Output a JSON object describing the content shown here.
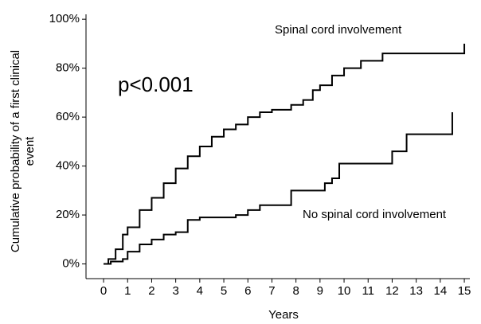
{
  "chart_data": {
    "type": "step",
    "y_label": [
      "Cumulative probability of a first clinical",
      "event"
    ],
    "x_label": "Years",
    "annotations": [
      "p<0.001"
    ],
    "xlim": [
      -0.73,
      15.23
    ],
    "xticks": [
      0,
      1,
      2,
      3,
      4,
      5,
      6,
      7,
      8,
      9,
      10,
      11,
      12,
      13,
      14,
      15
    ],
    "ylim": [
      -6,
      102
    ],
    "yticks": [
      {
        "value": 0,
        "label": "0%"
      },
      {
        "value": 20,
        "label": "20%"
      },
      {
        "value": 40,
        "label": "40%"
      },
      {
        "value": 60,
        "label": "60%"
      },
      {
        "value": 80,
        "label": "80%"
      },
      {
        "value": 100,
        "label": "100%"
      }
    ],
    "series": [
      {
        "name": "Spinal cord involvement",
        "color": "#000000",
        "x": [
          0,
          0.2,
          0.5,
          0.8,
          1,
          1.5,
          2,
          2.5,
          3,
          3.5,
          4,
          4.5,
          5,
          5.5,
          6,
          6.5,
          7,
          7.8,
          8.3,
          8.7,
          9,
          9.5,
          10,
          10.7,
          11.6,
          15
        ],
        "values": [
          0,
          2,
          6,
          12,
          15,
          22,
          27,
          33,
          39,
          44,
          48,
          52,
          55,
          57,
          60,
          62,
          63,
          65,
          67,
          71,
          73,
          77,
          80,
          83,
          86,
          90
        ]
      },
      {
        "name": "No spinal cord involvement",
        "color": "#000000",
        "x": [
          0,
          0.3,
          0.8,
          1,
          1.5,
          2,
          2.5,
          3,
          3.5,
          4,
          5.5,
          6,
          6.5,
          7.8,
          9.2,
          9.5,
          9.8,
          12,
          12.6,
          14.5
        ],
        "values": [
          0,
          1,
          2,
          5,
          8,
          10,
          12,
          13,
          18,
          19,
          20,
          22,
          24,
          30,
          33,
          35,
          41,
          46,
          53,
          62
        ]
      }
    ]
  }
}
